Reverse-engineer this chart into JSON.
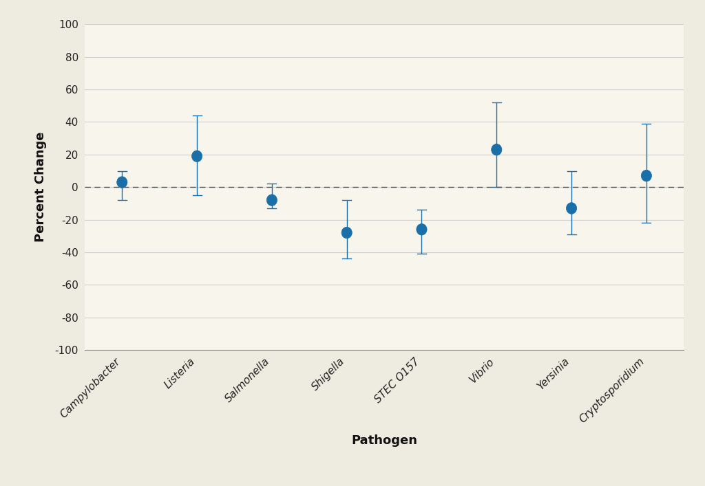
{
  "categories": [
    "Campylobacter",
    "Listeria",
    "Salmonella",
    "Shigella",
    "STEC O157",
    "Vibrio",
    "Yersinia",
    "Cryptosporidium"
  ],
  "centers": [
    3,
    19,
    -8,
    -28,
    -26,
    23,
    -13,
    7
  ],
  "ci_lower": [
    -8,
    -5,
    -13,
    -44,
    -41,
    0,
    -29,
    -22
  ],
  "ci_upper": [
    10,
    44,
    2,
    -8,
    -14,
    52,
    10,
    39
  ],
  "point_color": "#1a6fa8",
  "line_color": "#1a6fa8",
  "outer_bg": "#eeebe0",
  "inner_bg": "#f7f5ec",
  "ylabel": "Percent Change",
  "xlabel": "Pathogen",
  "ylim": [
    -100,
    100
  ],
  "yticks": [
    -100,
    -80,
    -60,
    -40,
    -20,
    0,
    20,
    40,
    60,
    80,
    100
  ],
  "dashed_line_y": 0,
  "grid_color": "#d0cfc8",
  "spine_color": "#888880",
  "tick_label_color": "#222222",
  "label_color": "#111111"
}
